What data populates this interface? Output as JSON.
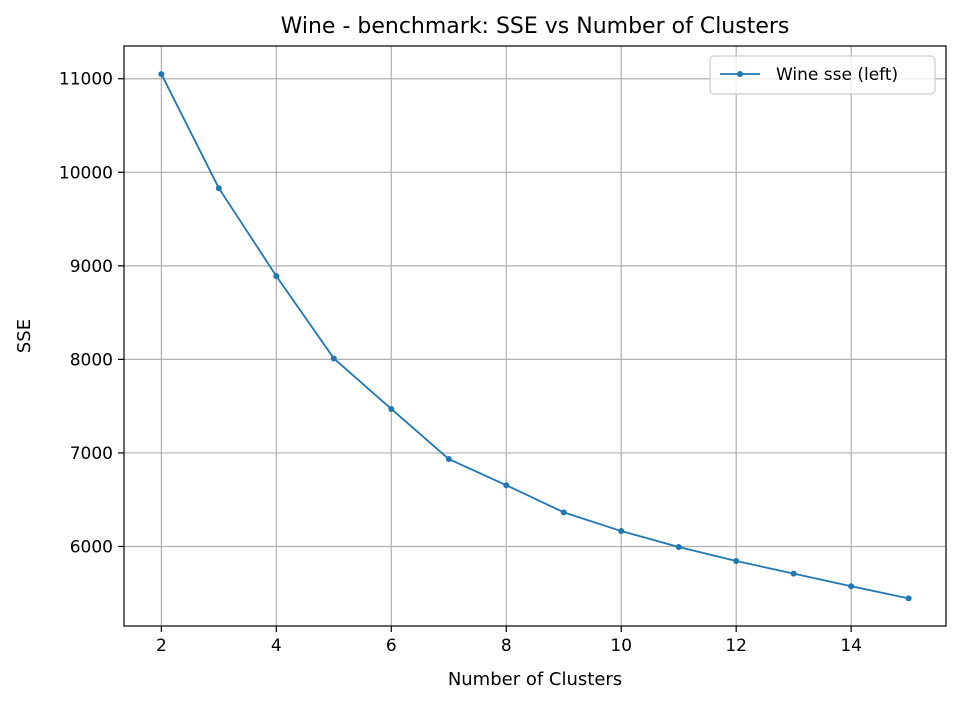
{
  "chart_data": {
    "type": "line",
    "title": "Wine - benchmark: SSE vs Number of Clusters",
    "xlabel": "Number of Clusters",
    "ylabel": "SSE",
    "xlim": [
      1.35,
      15.65
    ],
    "ylim": [
      5150,
      11350
    ],
    "xticks": [
      2,
      4,
      6,
      8,
      10,
      12,
      14
    ],
    "yticks": [
      6000,
      7000,
      8000,
      9000,
      10000,
      11000
    ],
    "grid": true,
    "legend_position": "top-right",
    "series": [
      {
        "name": "Wine sse (left)",
        "color": "#1f77b4",
        "x": [
          2,
          3,
          4,
          5,
          6,
          7,
          8,
          9,
          10,
          11,
          12,
          13,
          14,
          15
        ],
        "y": [
          11050,
          9830,
          8890,
          8010,
          7470,
          6935,
          6655,
          6365,
          6165,
          5995,
          5845,
          5710,
          5575,
          5445
        ]
      }
    ]
  }
}
